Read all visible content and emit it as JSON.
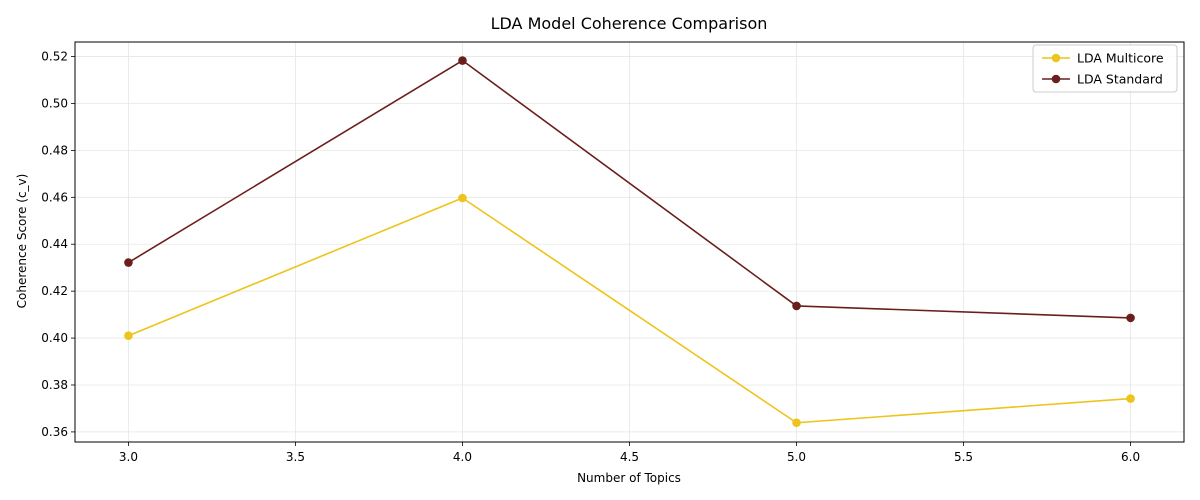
{
  "chart_data": {
    "type": "line",
    "title": "LDA Model Coherence Comparison",
    "xlabel": "Number of Topics",
    "ylabel": "Coherence Score (c_v)",
    "x": [
      3,
      4,
      5,
      6
    ],
    "xlim": [
      2.84,
      6.16
    ],
    "ylim": [
      0.3557,
      0.5262
    ],
    "xticks": [
      3.0,
      3.5,
      4.0,
      4.5,
      5.0,
      5.5,
      6.0
    ],
    "xtick_labels": [
      "3.0",
      "3.5",
      "4.0",
      "4.5",
      "5.0",
      "5.5",
      "6.0"
    ],
    "yticks": [
      0.36,
      0.38,
      0.4,
      0.42,
      0.44,
      0.46,
      0.48,
      0.5,
      0.52
    ],
    "ytick_labels": [
      "0.36",
      "0.38",
      "0.40",
      "0.42",
      "0.44",
      "0.46",
      "0.48",
      "0.50",
      "0.52"
    ],
    "grid": true,
    "legend_position": "top-right",
    "series": [
      {
        "name": "LDA Multicore",
        "color": "#ecc41a",
        "values": [
          0.401,
          0.4597,
          0.3639,
          0.3742
        ]
      },
      {
        "name": "LDA Standard",
        "color": "#6b1f1c",
        "values": [
          0.4322,
          0.5183,
          0.4137,
          0.4086
        ]
      }
    ]
  }
}
